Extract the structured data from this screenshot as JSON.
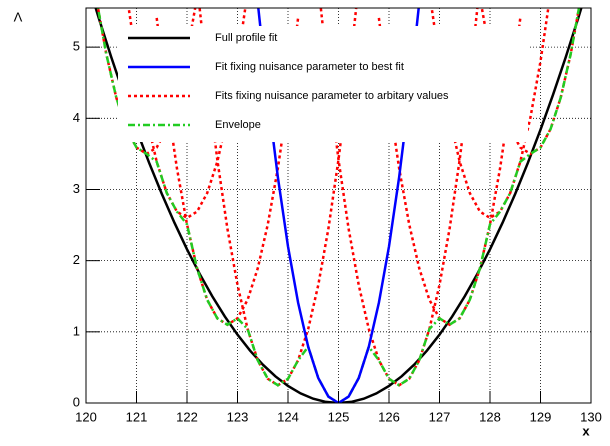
{
  "chart_data": {
    "type": "line",
    "x_label": "x",
    "y_label": "Λ",
    "xlim": [
      120,
      130
    ],
    "ylim": [
      0,
      5.55
    ],
    "xticks": [
      120,
      121,
      122,
      123,
      124,
      125,
      126,
      127,
      128,
      129,
      130
    ],
    "yticks": [
      0,
      1,
      2,
      3,
      4,
      5
    ],
    "grid": true,
    "legend": "top-left",
    "series": [
      {
        "name": "Full profile fit",
        "color": "#000000",
        "dash": "solid",
        "x": [
          120,
          120.25,
          120.5,
          120.75,
          121,
          121.25,
          121.5,
          121.75,
          122,
          122.25,
          122.5,
          122.75,
          123,
          123.25,
          123.5,
          123.75,
          124,
          124.25,
          124.5,
          124.75,
          125,
          125.25,
          125.5,
          125.75,
          126,
          126.25,
          126.5,
          126.75,
          127,
          127.25,
          127.5,
          127.75,
          128,
          128.25,
          128.5,
          128.75,
          129,
          129.25,
          129.5,
          129.75,
          130
        ],
        "values": [
          6,
          5.415,
          4.86,
          4.335,
          3.84,
          3.375,
          2.94,
          2.535,
          2.16,
          1.815,
          1.5,
          1.215,
          0.96,
          0.735,
          0.54,
          0.375,
          0.24,
          0.135,
          0.06,
          0.015,
          0,
          0.015,
          0.06,
          0.135,
          0.24,
          0.375,
          0.54,
          0.735,
          0.96,
          1.215,
          1.5,
          1.815,
          2.16,
          2.535,
          2.94,
          3.375,
          3.84,
          4.335,
          4.86,
          5.415,
          6
        ]
      },
      {
        "name": "Fit fixing nuisance parameter to best fit",
        "color": "#0000ff",
        "dash": "solid",
        "x": [
          123.4,
          123.6,
          123.8,
          124,
          124.2,
          124.4,
          124.6,
          124.8,
          125,
          125.2,
          125.4,
          125.6,
          125.8,
          126,
          126.2,
          126.4,
          126.6
        ],
        "values": [
          5.63,
          4.31,
          3.17,
          2.2,
          1.41,
          0.79,
          0.35,
          0.09,
          0,
          0.09,
          0.35,
          0.79,
          1.41,
          2.2,
          3.17,
          4.31,
          5.63
        ]
      },
      {
        "name": "Fits fixing nuisance parameter to arbitary values",
        "color": "#ff0000",
        "dash": "dotted",
        "x": [
          120.2,
          120.4,
          120.6,
          120.8,
          121,
          121.2,
          121.4,
          121.6,
          121.8,
          122,
          122.2,
          null,
          120.8,
          121,
          121.2,
          121.4,
          121.6,
          121.8,
          122,
          122.2,
          122.4,
          122.6,
          122.8,
          123,
          123.2,
          null,
          121.4,
          121.6,
          121.8,
          122,
          122.2,
          122.4,
          122.6,
          122.8,
          123,
          123.2,
          123.4,
          123.6,
          123.8,
          124,
          124.2,
          null,
          122.2,
          122.4,
          122.6,
          122.8,
          123,
          123.2,
          123.4,
          123.6,
          123.8,
          124,
          124.2,
          124.4,
          124.6,
          124.8,
          125,
          125.2,
          125.4,
          null,
          124.6,
          124.8,
          125,
          125.2,
          125.4,
          125.6,
          125.8,
          126,
          126.2,
          126.4,
          126.6,
          126.8,
          127,
          127.2,
          127.4,
          127.6,
          127.8,
          null,
          125.8,
          126,
          126.2,
          126.4,
          126.6,
          126.8,
          127,
          127.2,
          127.4,
          127.6,
          127.8,
          128,
          128.2,
          128.4,
          128.6,
          null,
          126.8,
          127,
          127.2,
          127.4,
          127.6,
          127.8,
          128,
          128.2,
          128.4,
          128.6,
          128.8,
          129,
          129.2,
          null,
          127.8,
          128,
          128.2,
          128.4,
          128.6,
          128.8,
          129,
          129.2,
          129.4,
          129.6,
          129.8
        ],
        "values": [
          5.7,
          4.91,
          4.29,
          3.85,
          3.59,
          3.5,
          3.59,
          3.85,
          4.29,
          4.91,
          5.7,
          null,
          5.77,
          4.8,
          4.01,
          3.39,
          2.95,
          2.69,
          2.6,
          2.69,
          2.95,
          3.39,
          4.01,
          4.8,
          5.77,
          null,
          5.41,
          4.27,
          3.3,
          2.51,
          1.89,
          1.45,
          1.19,
          1.1,
          1.19,
          1.45,
          1.89,
          2.51,
          3.3,
          4.27,
          5.41,
          null,
          5.88,
          4.56,
          3.42,
          2.45,
          1.66,
          1.04,
          0.6,
          0.34,
          0.25,
          0.34,
          0.6,
          1.04,
          1.66,
          2.45,
          3.42,
          4.56,
          5.88,
          null,
          5.88,
          4.56,
          3.42,
          2.45,
          1.66,
          1.04,
          0.6,
          0.34,
          0.25,
          0.34,
          0.6,
          1.04,
          1.66,
          2.45,
          3.42,
          4.56,
          5.88,
          null,
          5.41,
          4.27,
          3.3,
          2.51,
          1.89,
          1.45,
          1.19,
          1.1,
          1.19,
          1.45,
          1.89,
          2.51,
          3.3,
          4.27,
          5.41,
          null,
          5.77,
          4.8,
          4.01,
          3.39,
          2.95,
          2.69,
          2.6,
          2.69,
          2.95,
          3.39,
          4.01,
          4.8,
          5.77,
          null,
          5.7,
          4.91,
          4.29,
          3.85,
          3.59,
          3.5,
          3.59,
          3.85,
          4.29,
          4.91,
          5.7
        ]
      },
      {
        "name": "Envelope",
        "color": "#22cc22",
        "dash": "dashdot",
        "x": [
          120.2,
          120.4,
          120.6,
          120.8,
          121,
          121.2,
          121.4,
          121.6,
          121.8,
          122,
          122.2,
          122.4,
          122.6,
          122.8,
          123,
          123.2,
          123.4,
          123.6,
          123.8,
          124,
          124.2,
          124.4,
          124.6,
          124.8,
          125,
          125.2,
          125.4,
          125.6,
          125.8,
          126,
          126.2,
          126.4,
          126.6,
          126.8,
          127,
          127.2,
          127.4,
          127.6,
          127.8,
          128,
          128.2,
          128.4,
          128.6,
          128.8,
          129,
          129.2,
          129.4,
          129.6,
          129.8
        ],
        "values": [
          5.7,
          4.91,
          4.29,
          3.85,
          3.59,
          3.5,
          3.39,
          2.95,
          2.69,
          2.51,
          1.89,
          1.45,
          1.19,
          1.1,
          1.19,
          1.04,
          0.6,
          0.34,
          0.25,
          0.34,
          0.6,
          0.79,
          0.35,
          0.09,
          0,
          0.09,
          0.35,
          0.79,
          0.6,
          0.34,
          0.25,
          0.34,
          0.6,
          1.04,
          1.19,
          1.1,
          1.19,
          1.45,
          1.89,
          2.51,
          2.69,
          2.95,
          3.39,
          3.5,
          3.59,
          3.85,
          4.29,
          4.91,
          5.7
        ]
      }
    ]
  }
}
